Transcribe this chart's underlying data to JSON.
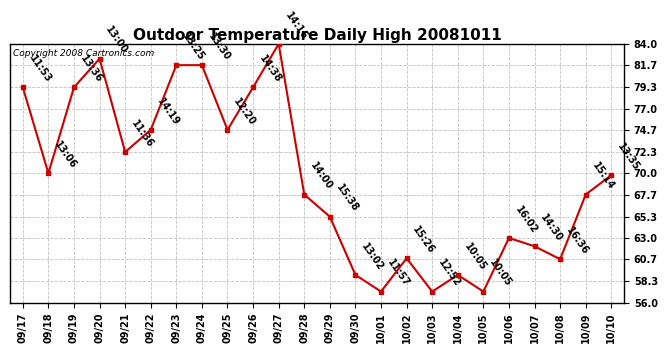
{
  "title": "Outdoor Temperature Daily High 20081011",
  "copyright": "Copyright 2008 Cartronics.com",
  "x_labels": [
    "09/17",
    "09/18",
    "09/19",
    "09/20",
    "09/21",
    "09/22",
    "09/23",
    "09/24",
    "09/25",
    "09/26",
    "09/27",
    "09/28",
    "09/29",
    "09/30",
    "10/01",
    "10/02",
    "10/03",
    "10/04",
    "10/05",
    "10/06",
    "10/07",
    "10/08",
    "10/09",
    "10/10"
  ],
  "y_values": [
    79.3,
    70.0,
    79.3,
    82.4,
    72.3,
    74.7,
    81.7,
    81.7,
    74.7,
    79.3,
    84.0,
    67.7,
    65.3,
    59.0,
    57.2,
    60.8,
    57.2,
    59.0,
    57.2,
    63.0,
    62.1,
    60.7,
    67.7,
    69.8
  ],
  "time_labels": [
    "11:53",
    "13:06",
    "13:36",
    "13:00",
    "11:36",
    "14:19",
    "13:25",
    "13:30",
    "12:20",
    "14:38",
    "14:16",
    "14:00",
    "15:38",
    "13:02",
    "11:57",
    "15:26",
    "12:52",
    "10:05",
    "10:05",
    "16:02",
    "14:30",
    "16:36",
    "15:14",
    "13:35"
  ],
  "ylim": [
    56.0,
    84.0
  ],
  "yticks": [
    56.0,
    58.3,
    60.7,
    63.0,
    65.3,
    67.7,
    70.0,
    72.3,
    74.7,
    77.0,
    79.3,
    81.7,
    84.0
  ],
  "line_color": "#cc0000",
  "marker_color": "#cc0000",
  "bg_color": "#ffffff",
  "grid_color": "#c0c0c0",
  "title_fontsize": 11,
  "label_fontsize": 7,
  "tick_fontsize": 7,
  "copyright_fontsize": 6.5
}
